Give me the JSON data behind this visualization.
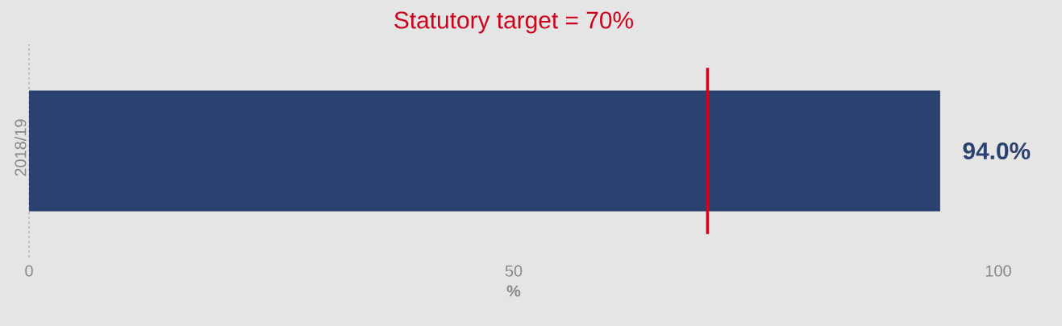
{
  "chart_data": {
    "type": "bar",
    "orientation": "horizontal",
    "title": "Statutory target = 70%",
    "xlabel": "%",
    "categories": [
      "2018/19"
    ],
    "values": [
      94.0
    ],
    "value_labels": [
      "94.0%"
    ],
    "color": "#2b4170",
    "xlim": [
      0,
      100
    ],
    "xticks": [
      0,
      50,
      100
    ],
    "ref_lines": [
      {
        "axis": "x",
        "value": 70,
        "color": "#d0021b"
      }
    ],
    "grid": false
  }
}
